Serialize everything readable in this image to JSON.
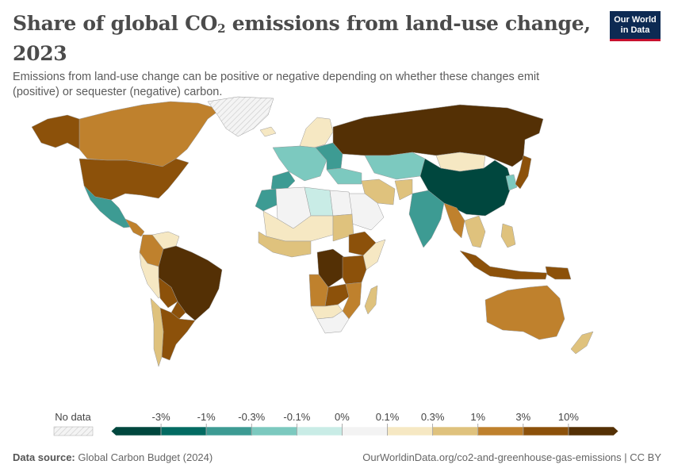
{
  "header": {
    "title_pre": "Share of global CO",
    "title_sub": "2",
    "title_post": " emissions from land-use change, 2023",
    "subtitle": "Emissions from land-use change can be positive or negative depending on whether these changes emit (positive) or sequester (negative) carbon."
  },
  "logo": {
    "line1": "Our World",
    "line2": "in Data"
  },
  "legend": {
    "no_data_label": "No data",
    "ticks": [
      "-3%",
      "-1%",
      "-0.3%",
      "-0.1%",
      "0%",
      "0.1%",
      "0.3%",
      "1%",
      "3%",
      "10%"
    ],
    "bins": [
      {
        "color": "#00473e"
      },
      {
        "color": "#036b62"
      },
      {
        "color": "#3d9b93"
      },
      {
        "color": "#7cc9bf"
      },
      {
        "color": "#c9ece6"
      },
      {
        "color": "#f3f3f3"
      },
      {
        "color": "#f6e8c3"
      },
      {
        "color": "#dfc27d"
      },
      {
        "color": "#bf812d"
      },
      {
        "color": "#8c510a"
      },
      {
        "color": "#543005"
      }
    ]
  },
  "map": {
    "no_data_color": "#e8e8e8",
    "regions": [
      {
        "name": "Canada",
        "bin": 8
      },
      {
        "name": "Alaska",
        "bin": 9
      },
      {
        "name": "United States",
        "bin": 9
      },
      {
        "name": "Greenland",
        "bin": null
      },
      {
        "name": "Mexico",
        "bin": 2
      },
      {
        "name": "Central America",
        "bin": 8
      },
      {
        "name": "Venezuela",
        "bin": 6
      },
      {
        "name": "Colombia",
        "bin": 8
      },
      {
        "name": "Brazil",
        "bin": 10
      },
      {
        "name": "Peru",
        "bin": 6
      },
      {
        "name": "Bolivia",
        "bin": 9
      },
      {
        "name": "Paraguay",
        "bin": 9
      },
      {
        "name": "Argentina",
        "bin": 9
      },
      {
        "name": "Chile",
        "bin": 7
      },
      {
        "name": "Iceland",
        "bin": 6
      },
      {
        "name": "Scandinavia",
        "bin": 6
      },
      {
        "name": "Western Europe",
        "bin": 3
      },
      {
        "name": "Iberia",
        "bin": 2
      },
      {
        "name": "Eastern Europe",
        "bin": 2
      },
      {
        "name": "Russia",
        "bin": 10
      },
      {
        "name": "Kazakhstan",
        "bin": 3
      },
      {
        "name": "Mongolia",
        "bin": 6
      },
      {
        "name": "China",
        "bin": 0
      },
      {
        "name": "Korea",
        "bin": 3
      },
      {
        "name": "Japan",
        "bin": 9
      },
      {
        "name": "Turkey",
        "bin": 3
      },
      {
        "name": "Iran",
        "bin": 7
      },
      {
        "name": "Arabian Peninsula",
        "bin": 5
      },
      {
        "name": "Afghanistan",
        "bin": 7
      },
      {
        "name": "India",
        "bin": 2
      },
      {
        "name": "Myanmar",
        "bin": 8
      },
      {
        "name": "Southeast Asia",
        "bin": 7
      },
      {
        "name": "Indonesia",
        "bin": 9
      },
      {
        "name": "Papua New Guinea",
        "bin": 9
      },
      {
        "name": "Philippines",
        "bin": 7
      },
      {
        "name": "Australia",
        "bin": 8
      },
      {
        "name": "New Zealand",
        "bin": 7
      },
      {
        "name": "Morocco",
        "bin": 2
      },
      {
        "name": "Algeria",
        "bin": 5
      },
      {
        "name": "Libya",
        "bin": 4
      },
      {
        "name": "Egypt",
        "bin": 5
      },
      {
        "name": "Sahel",
        "bin": 6
      },
      {
        "name": "West Africa",
        "bin": 7
      },
      {
        "name": "Sudan",
        "bin": 7
      },
      {
        "name": "Ethiopia",
        "bin": 9
      },
      {
        "name": "Somalia",
        "bin": 6
      },
      {
        "name": "DR Congo",
        "bin": 10
      },
      {
        "name": "Tanzania",
        "bin": 9
      },
      {
        "name": "Angola",
        "bin": 8
      },
      {
        "name": "Zambia",
        "bin": 9
      },
      {
        "name": "Mozambique",
        "bin": 8
      },
      {
        "name": "Southern Africa",
        "bin": 6
      },
      {
        "name": "South Africa",
        "bin": 5
      },
      {
        "name": "Madagascar",
        "bin": 7
      }
    ]
  },
  "footer": {
    "source_label": "Data source:",
    "source_value": "Global Carbon Budget (2024)",
    "right": "OurWorldinData.org/co2-and-greenhouse-gas-emissions | CC BY"
  }
}
